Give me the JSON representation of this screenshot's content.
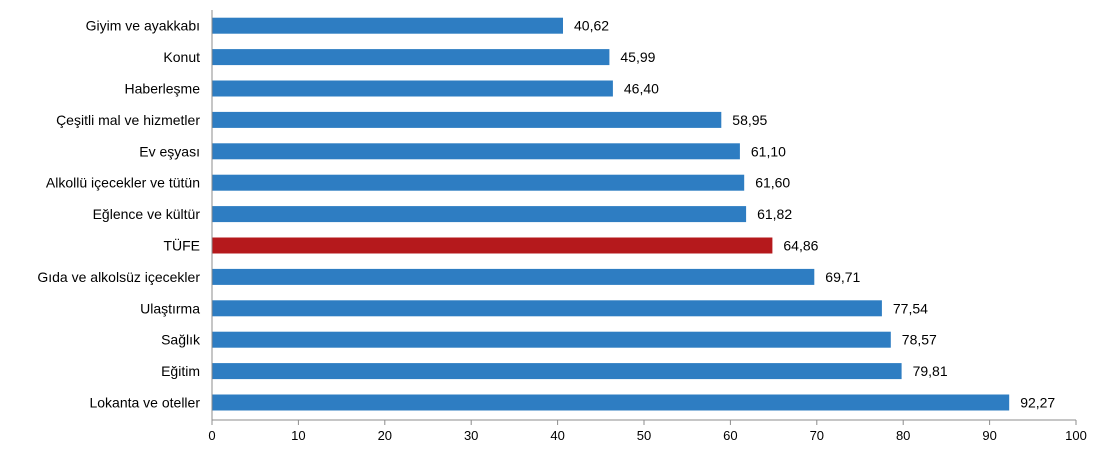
{
  "chart_data": {
    "type": "bar",
    "orientation": "horizontal",
    "title": "",
    "xlabel": "",
    "ylabel": "",
    "categories": [
      "Giyim ve ayakkabı",
      "Konut",
      "Haberleşme",
      "Çeşitli mal ve hizmetler",
      "Ev eşyası",
      "Alkollü içecekler ve tütün",
      "Eğlence ve kültür",
      "TÜFE",
      "Gıda ve alkolsüz içecekler",
      "Ulaştırma",
      "Sağlık",
      "Eğitim",
      "Lokanta ve oteller"
    ],
    "values": [
      40.62,
      45.99,
      46.4,
      58.95,
      61.1,
      61.6,
      61.82,
      64.86,
      69.71,
      77.54,
      78.57,
      79.81,
      92.27
    ],
    "value_labels": [
      "40,62",
      "45,99",
      "46,40",
      "58,95",
      "61,10",
      "61,60",
      "61,82",
      "64,86",
      "69,71",
      "77,54",
      "78,57",
      "79,81",
      "92,27"
    ],
    "xlim": [
      0,
      100
    ],
    "xticks": [
      0,
      10,
      20,
      30,
      40,
      50,
      60,
      70,
      80,
      90,
      100
    ],
    "grid": false,
    "legend": "none",
    "colors": {
      "default": "#2e7dc2",
      "highlight": "#b5191c",
      "highlight_category": "TÜFE"
    }
  }
}
